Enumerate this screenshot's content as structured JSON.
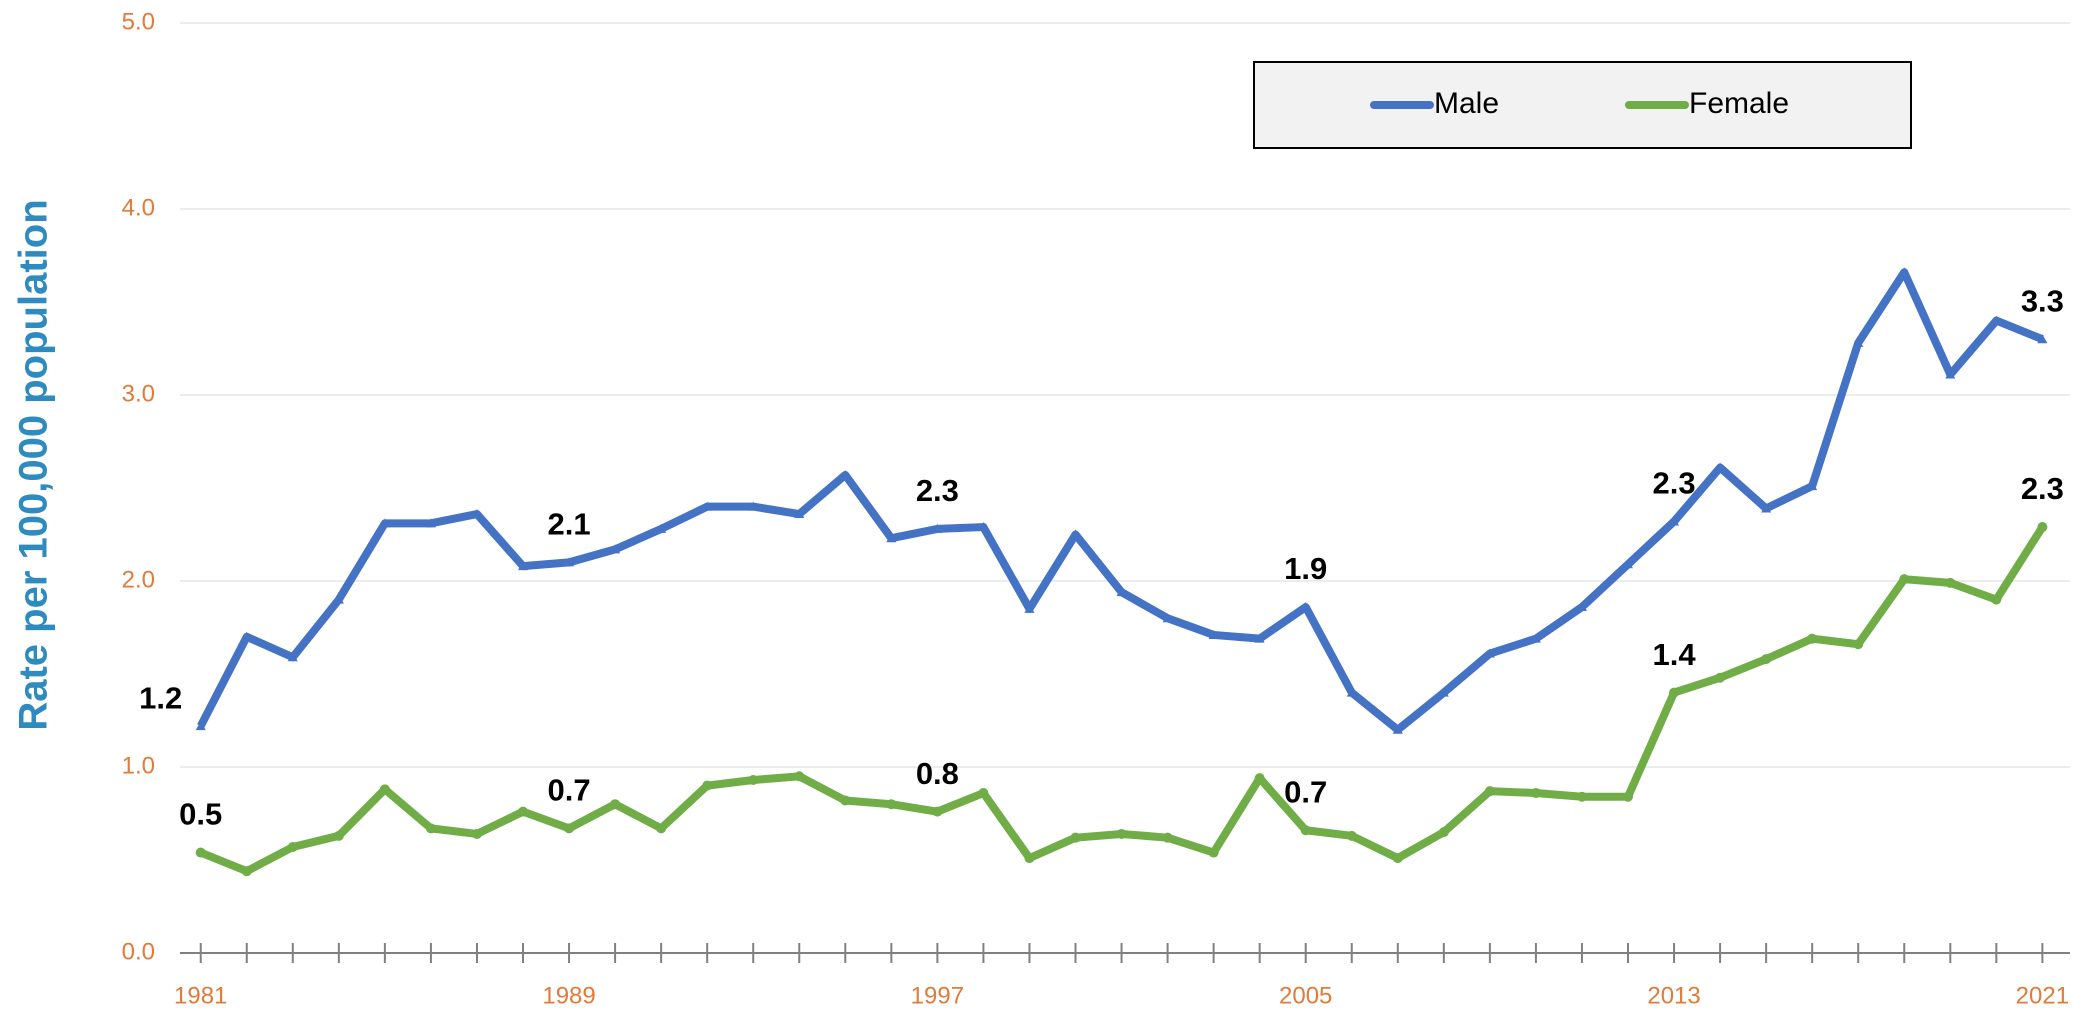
{
  "chart_data": {
    "type": "line",
    "y_label": "Rate per 100,000 population",
    "x": [
      1981,
      1982,
      1983,
      1984,
      1985,
      1986,
      1987,
      1988,
      1989,
      1990,
      1991,
      1992,
      1993,
      1994,
      1995,
      1996,
      1997,
      1998,
      1999,
      2000,
      2001,
      2002,
      2003,
      2004,
      2005,
      2006,
      2007,
      2008,
      2009,
      2010,
      2011,
      2012,
      2013,
      2014,
      2015,
      2016,
      2017,
      2018,
      2019,
      2020,
      2021
    ],
    "xlim": [
      1980.55,
      2021.6
    ],
    "xticks": [
      1981,
      1989,
      1997,
      2005,
      2013,
      2021
    ],
    "ylim": [
      0,
      5
    ],
    "yticks": [
      {
        "value": 0,
        "label": "0.0"
      },
      {
        "value": 1,
        "label": "1.0"
      },
      {
        "value": 2,
        "label": "2.0"
      },
      {
        "value": 3,
        "label": "3.0"
      },
      {
        "value": 4,
        "label": "4.0"
      },
      {
        "value": 5,
        "label": "5.0"
      }
    ],
    "grid": true,
    "legend": "top",
    "series": [
      {
        "name": "Male",
        "color": "#4472c4",
        "marker": "triangle",
        "values": [
          1.22,
          1.7,
          1.59,
          1.9,
          2.31,
          2.31,
          2.36,
          2.08,
          2.1,
          2.17,
          2.28,
          2.4,
          2.4,
          2.36,
          2.57,
          2.23,
          2.28,
          2.29,
          1.85,
          2.25,
          1.94,
          1.8,
          1.71,
          1.69,
          1.86,
          1.4,
          1.2,
          1.4,
          1.61,
          1.69,
          1.86,
          2.09,
          2.32,
          2.61,
          2.39,
          2.51,
          3.28,
          3.66,
          3.11,
          3.4,
          3.3
        ],
        "value_labels": [
          "1.2",
          null,
          null,
          null,
          null,
          null,
          null,
          null,
          "2.1",
          null,
          null,
          null,
          null,
          null,
          null,
          null,
          "2.3",
          null,
          null,
          null,
          null,
          null,
          null,
          null,
          "1.9",
          null,
          null,
          null,
          null,
          null,
          null,
          null,
          "2.3",
          null,
          null,
          null,
          null,
          null,
          null,
          null,
          "3.3"
        ]
      },
      {
        "name": "Female",
        "color": "#70ad47",
        "marker": "circle",
        "values": [
          0.54,
          0.44,
          0.57,
          0.63,
          0.88,
          0.67,
          0.64,
          0.76,
          0.67,
          0.8,
          0.67,
          0.9,
          0.93,
          0.95,
          0.82,
          0.8,
          0.76,
          0.86,
          0.51,
          0.62,
          0.64,
          0.62,
          0.54,
          0.94,
          0.66,
          0.63,
          0.51,
          0.65,
          0.87,
          0.86,
          0.84,
          0.84,
          1.4,
          1.48,
          1.58,
          1.69,
          1.66,
          2.01,
          1.99,
          1.9,
          2.29
        ],
        "value_labels": [
          "0.5",
          null,
          null,
          null,
          null,
          null,
          null,
          null,
          "0.7",
          null,
          null,
          null,
          null,
          null,
          null,
          null,
          "0.8",
          null,
          null,
          null,
          null,
          null,
          null,
          null,
          "0.7",
          null,
          null,
          null,
          null,
          null,
          null,
          null,
          "1.4",
          null,
          null,
          null,
          null,
          null,
          null,
          null,
          "2.3"
        ]
      }
    ]
  }
}
